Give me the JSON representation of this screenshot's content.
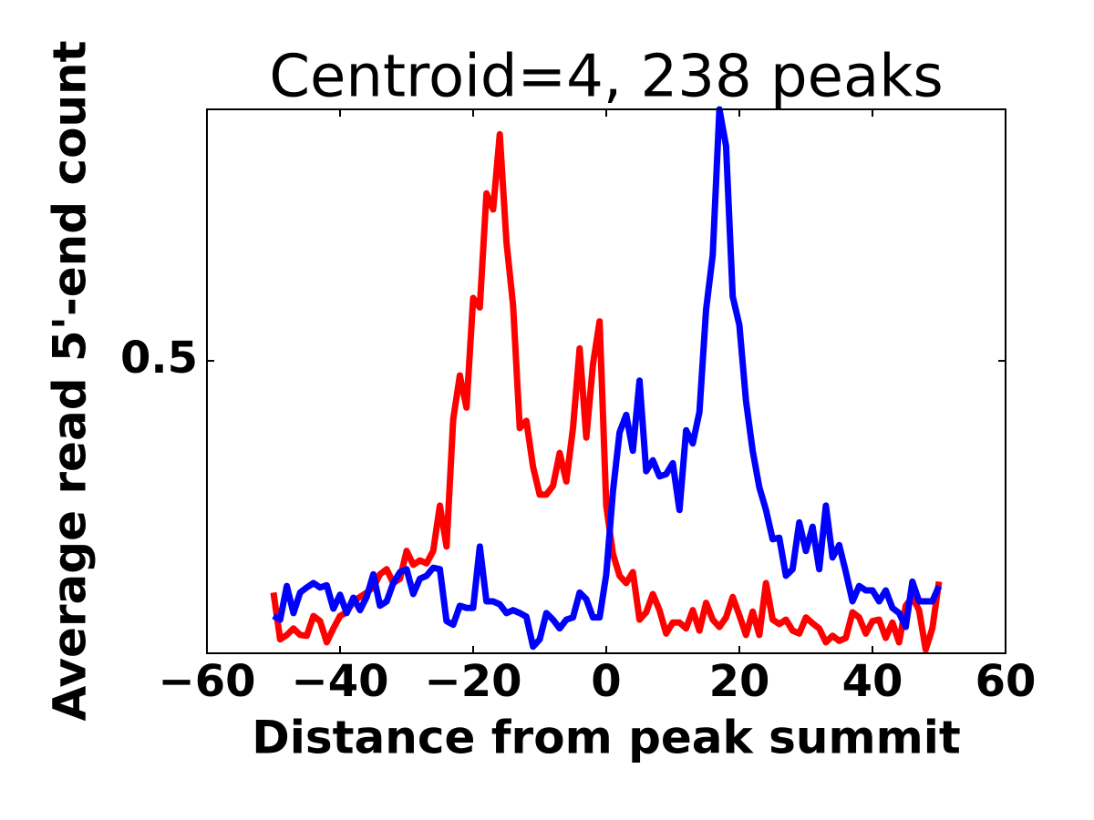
{
  "chart_data": {
    "type": "line",
    "title": "Centroid=4, 238 peaks",
    "xlabel": "Distance from peak summit",
    "ylabel": "Average read 5'-end count",
    "x": [
      -50,
      -49,
      -48,
      -47,
      -46,
      -45,
      -44,
      -43,
      -42,
      -41,
      -40,
      -39,
      -38,
      -37,
      -36,
      -35,
      -34,
      -33,
      -32,
      -31,
      -30,
      -29,
      -28,
      -27,
      -26,
      -25,
      -24,
      -23,
      -22,
      -21,
      -20,
      -19,
      -18,
      -17,
      -16,
      -15,
      -14,
      -13,
      -12,
      -11,
      -10,
      -9,
      -8,
      -7,
      -6,
      -5,
      -4,
      -3,
      -2,
      -1,
      0,
      1,
      2,
      3,
      4,
      5,
      6,
      7,
      8,
      9,
      10,
      11,
      12,
      13,
      14,
      15,
      16,
      17,
      18,
      19,
      20,
      21,
      22,
      23,
      24,
      25,
      26,
      27,
      28,
      29,
      30,
      31,
      32,
      33,
      34,
      35,
      36,
      37,
      38,
      39,
      40,
      41,
      42,
      43,
      44,
      45,
      46,
      47,
      48,
      49,
      50
    ],
    "series": [
      {
        "color": "#ff0000",
        "values": [
          0.183,
          0.119,
          0.125,
          0.134,
          0.125,
          0.124,
          0.151,
          0.144,
          0.115,
          0.134,
          0.151,
          0.156,
          0.171,
          0.177,
          0.183,
          0.19,
          0.208,
          0.215,
          0.196,
          0.202,
          0.24,
          0.221,
          0.227,
          0.223,
          0.24,
          0.302,
          0.246,
          0.42,
          0.48,
          0.436,
          0.586,
          0.573,
          0.729,
          0.707,
          0.81,
          0.663,
          0.576,
          0.408,
          0.418,
          0.355,
          0.317,
          0.317,
          0.329,
          0.374,
          0.335,
          0.408,
          0.517,
          0.395,
          0.495,
          0.554,
          0.302,
          0.236,
          0.206,
          0.196,
          0.211,
          0.146,
          0.156,
          0.181,
          0.159,
          0.127,
          0.142,
          0.142,
          0.134,
          0.159,
          0.131,
          0.169,
          0.146,
          0.136,
          0.149,
          0.177,
          0.152,
          0.125,
          0.157,
          0.125,
          0.196,
          0.146,
          0.14,
          0.146,
          0.131,
          0.127,
          0.149,
          0.141,
          0.134,
          0.115,
          0.124,
          0.117,
          0.121,
          0.156,
          0.149,
          0.127,
          0.144,
          0.146,
          0.121,
          0.142,
          0.115,
          0.165,
          0.177,
          0.159,
          0.105,
          0.134,
          0.198
        ]
      },
      {
        "color": "#0000ff",
        "values": [
          0.151,
          0.146,
          0.192,
          0.155,
          0.183,
          0.19,
          0.196,
          0.19,
          0.193,
          0.161,
          0.18,
          0.155,
          0.176,
          0.159,
          0.177,
          0.208,
          0.165,
          0.171,
          0.196,
          0.211,
          0.215,
          0.181,
          0.202,
          0.206,
          0.217,
          0.215,
          0.144,
          0.139,
          0.165,
          0.162,
          0.162,
          0.246,
          0.171,
          0.171,
          0.167,
          0.155,
          0.159,
          0.155,
          0.15,
          0.109,
          0.119,
          0.155,
          0.146,
          0.134,
          0.146,
          0.149,
          0.183,
          0.174,
          0.149,
          0.149,
          0.208,
          0.321,
          0.402,
          0.426,
          0.377,
          0.473,
          0.349,
          0.364,
          0.342,
          0.345,
          0.36,
          0.296,
          0.405,
          0.387,
          0.43,
          0.57,
          0.645,
          0.844,
          0.794,
          0.588,
          0.549,
          0.445,
          0.377,
          0.327,
          0.296,
          0.256,
          0.258,
          0.206,
          0.215,
          0.279,
          0.24,
          0.273,
          0.215,
          0.302,
          0.231,
          0.248,
          0.211,
          0.171,
          0.192,
          0.186,
          0.186,
          0.171,
          0.186,
          0.162,
          0.155,
          0.136,
          0.198,
          0.171,
          0.171,
          0.171,
          0.192
        ]
      }
    ],
    "xlim": [
      -60,
      60
    ],
    "xticks": [
      {
        "value": -60,
        "label": "−60"
      },
      {
        "value": -40,
        "label": "−40"
      },
      {
        "value": -20,
        "label": "−20"
      },
      0,
      20,
      40,
      60
    ],
    "ylim": [
      0.1,
      0.844
    ],
    "yticks": [
      0.5
    ]
  }
}
